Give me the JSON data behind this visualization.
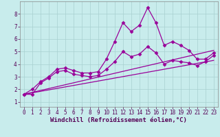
{
  "background_color": "#c8ecec",
  "grid_color": "#a8d0d0",
  "line_color": "#990099",
  "marker": "D",
  "markersize": 2.5,
  "linewidth": 0.9,
  "xlabel": "Windchill (Refroidissement éolien,°C)",
  "xlabel_fontsize": 6.5,
  "tick_fontsize": 5.5,
  "ylim": [
    0.6,
    9.0
  ],
  "xlim": [
    -0.5,
    23.5
  ],
  "yticks": [
    1,
    2,
    3,
    4,
    5,
    6,
    7,
    8
  ],
  "xticks": [
    0,
    1,
    2,
    3,
    4,
    5,
    6,
    7,
    8,
    9,
    10,
    11,
    12,
    13,
    14,
    15,
    16,
    17,
    18,
    19,
    20,
    21,
    22,
    23
  ],
  "series": [
    {
      "x": [
        0,
        1,
        2,
        3,
        4,
        5,
        6,
        7,
        8,
        9,
        10,
        11,
        12,
        13,
        14,
        15,
        16,
        17,
        18,
        19,
        20,
        21,
        22,
        23
      ],
      "y": [
        1.6,
        2.0,
        2.6,
        3.0,
        3.6,
        3.7,
        3.5,
        3.3,
        3.3,
        3.4,
        4.4,
        5.8,
        7.3,
        6.6,
        7.1,
        8.5,
        7.3,
        5.5,
        5.8,
        5.5,
        5.1,
        4.4,
        4.4,
        4.9
      ],
      "has_markers": true
    },
    {
      "x": [
        0,
        1,
        2,
        3,
        4,
        5,
        6,
        7,
        8,
        9,
        10,
        11,
        12,
        13,
        14,
        15,
        16,
        17,
        18,
        19,
        20,
        21,
        22,
        23
      ],
      "y": [
        1.6,
        1.6,
        2.5,
        2.9,
        3.4,
        3.5,
        3.2,
        3.1,
        3.0,
        3.1,
        3.6,
        4.2,
        5.0,
        4.6,
        4.8,
        5.4,
        4.9,
        4.0,
        4.3,
        4.2,
        4.1,
        3.9,
        4.2,
        4.7
      ],
      "has_markers": true
    },
    {
      "x": [
        0,
        23
      ],
      "y": [
        1.6,
        5.1
      ],
      "has_markers": false
    },
    {
      "x": [
        0,
        23
      ],
      "y": [
        1.6,
        4.3
      ],
      "has_markers": false
    }
  ]
}
